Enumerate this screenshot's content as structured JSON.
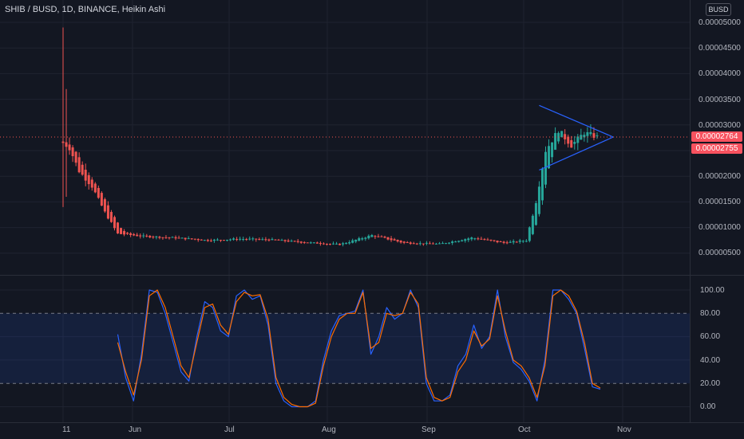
{
  "legend": {
    "symbol": "SHIB / BUSD, 1D, BINANCE, Heikin Ashi"
  },
  "currency_button": "BUSD",
  "price_axis": {
    "labels": [
      "0.00005000",
      "0.00004500",
      "0.00004000",
      "0.00003500",
      "0.00003000",
      "0.00002500",
      "0.00002000",
      "0.00001500",
      "0.00001000",
      "0.00000500"
    ],
    "last_price": "0.00002764",
    "prev_price": "0.00002755"
  },
  "osc_axis": {
    "labels": [
      "100.00",
      "80.00",
      "60.00",
      "40.00",
      "20.00",
      "0.00"
    ]
  },
  "time_axis": {
    "labels": [
      "11",
      "Jun",
      "Jul",
      "Aug",
      "Sep",
      "Oct",
      "Nov"
    ]
  },
  "colors": {
    "up": "#26a69a",
    "down": "#ef5350",
    "k_line": "#2962ff",
    "d_line": "#ff6d00",
    "band": "#2962ff",
    "triangle": "#2962ff"
  },
  "chart_data": [
    {
      "type": "candlestick",
      "heikin_ashi": true,
      "y_unit": "BUSD",
      "ylim": [
        3e-06,
        5.1e-05
      ],
      "x_ticks": [
        "11",
        "Jun",
        "Jul",
        "Aug",
        "Sep",
        "Oct",
        "Nov"
      ],
      "approx_close_path": [
        {
          "t": "May 11",
          "v": 2.65e-05
        },
        {
          "t": "May 13",
          "v": 2.55e-05
        },
        {
          "t": "May 16",
          "v": 2.1e-05
        },
        {
          "t": "May 20",
          "v": 1.8e-05
        },
        {
          "t": "May 24",
          "v": 1.3e-05
        },
        {
          "t": "May 28",
          "v": 8.8e-06
        },
        {
          "t": "Jun 5",
          "v": 8.3e-06
        },
        {
          "t": "Jun 15",
          "v": 8e-06
        },
        {
          "t": "Jun 25",
          "v": 7.5e-06
        },
        {
          "t": "Jul 5",
          "v": 7.8e-06
        },
        {
          "t": "Jul 15",
          "v": 7.6e-06
        },
        {
          "t": "Jul 25",
          "v": 7.1e-06
        },
        {
          "t": "Aug 5",
          "v": 6.7e-06
        },
        {
          "t": "Aug 15",
          "v": 8.5e-06
        },
        {
          "t": "Aug 25",
          "v": 7e-06
        },
        {
          "t": "Sep 5",
          "v": 6.8e-06
        },
        {
          "t": "Sep 15",
          "v": 8e-06
        },
        {
          "t": "Sep 25",
          "v": 7e-06
        },
        {
          "t": "Oct 2",
          "v": 7.5e-06
        },
        {
          "t": "Oct 5",
          "v": 1.5e-05
        },
        {
          "t": "Oct 8",
          "v": 2.5e-05
        },
        {
          "t": "Oct 12",
          "v": 2.9e-05
        },
        {
          "t": "Oct 16",
          "v": 2.6e-05
        },
        {
          "t": "Oct 20",
          "v": 2.85e-05
        },
        {
          "t": "Oct 24",
          "v": 2.764e-05
        }
      ],
      "last_price": 2.764e-05,
      "pattern": "symmetrical triangle"
    },
    {
      "type": "line",
      "indicator": "stochastic oscillator",
      "ylim": [
        -5,
        108
      ],
      "levels": [
        20,
        80
      ],
      "series": [
        {
          "values": [
            62,
            25,
            5,
            45,
            100,
            98,
            80,
            55,
            30,
            22,
            60,
            90,
            85,
            65,
            60,
            95,
            100,
            92,
            95,
            70,
            20,
            5,
            0,
            0,
            0,
            5,
            40,
            65,
            78,
            80,
            82,
            100,
            45,
            60,
            85,
            75,
            80,
            100,
            85,
            20,
            5,
            5,
            10,
            35,
            45,
            70,
            50,
            60,
            100,
            60,
            38,
            32,
            22,
            5,
            40,
            100,
            100,
            92,
            80,
            50,
            17,
            15
          ]
        },
        {
          "values": [
            55,
            30,
            10,
            40,
            95,
            100,
            85,
            60,
            35,
            25,
            55,
            85,
            88,
            70,
            62,
            90,
            98,
            95,
            96,
            75,
            25,
            8,
            2,
            0,
            0,
            3,
            35,
            60,
            75,
            80,
            80,
            98,
            50,
            55,
            80,
            78,
            80,
            98,
            88,
            25,
            8,
            5,
            8,
            30,
            40,
            65,
            52,
            58,
            95,
            65,
            40,
            35,
            25,
            8,
            35,
            95,
            100,
            95,
            82,
            55,
            20,
            16
          ]
        }
      ]
    }
  ]
}
